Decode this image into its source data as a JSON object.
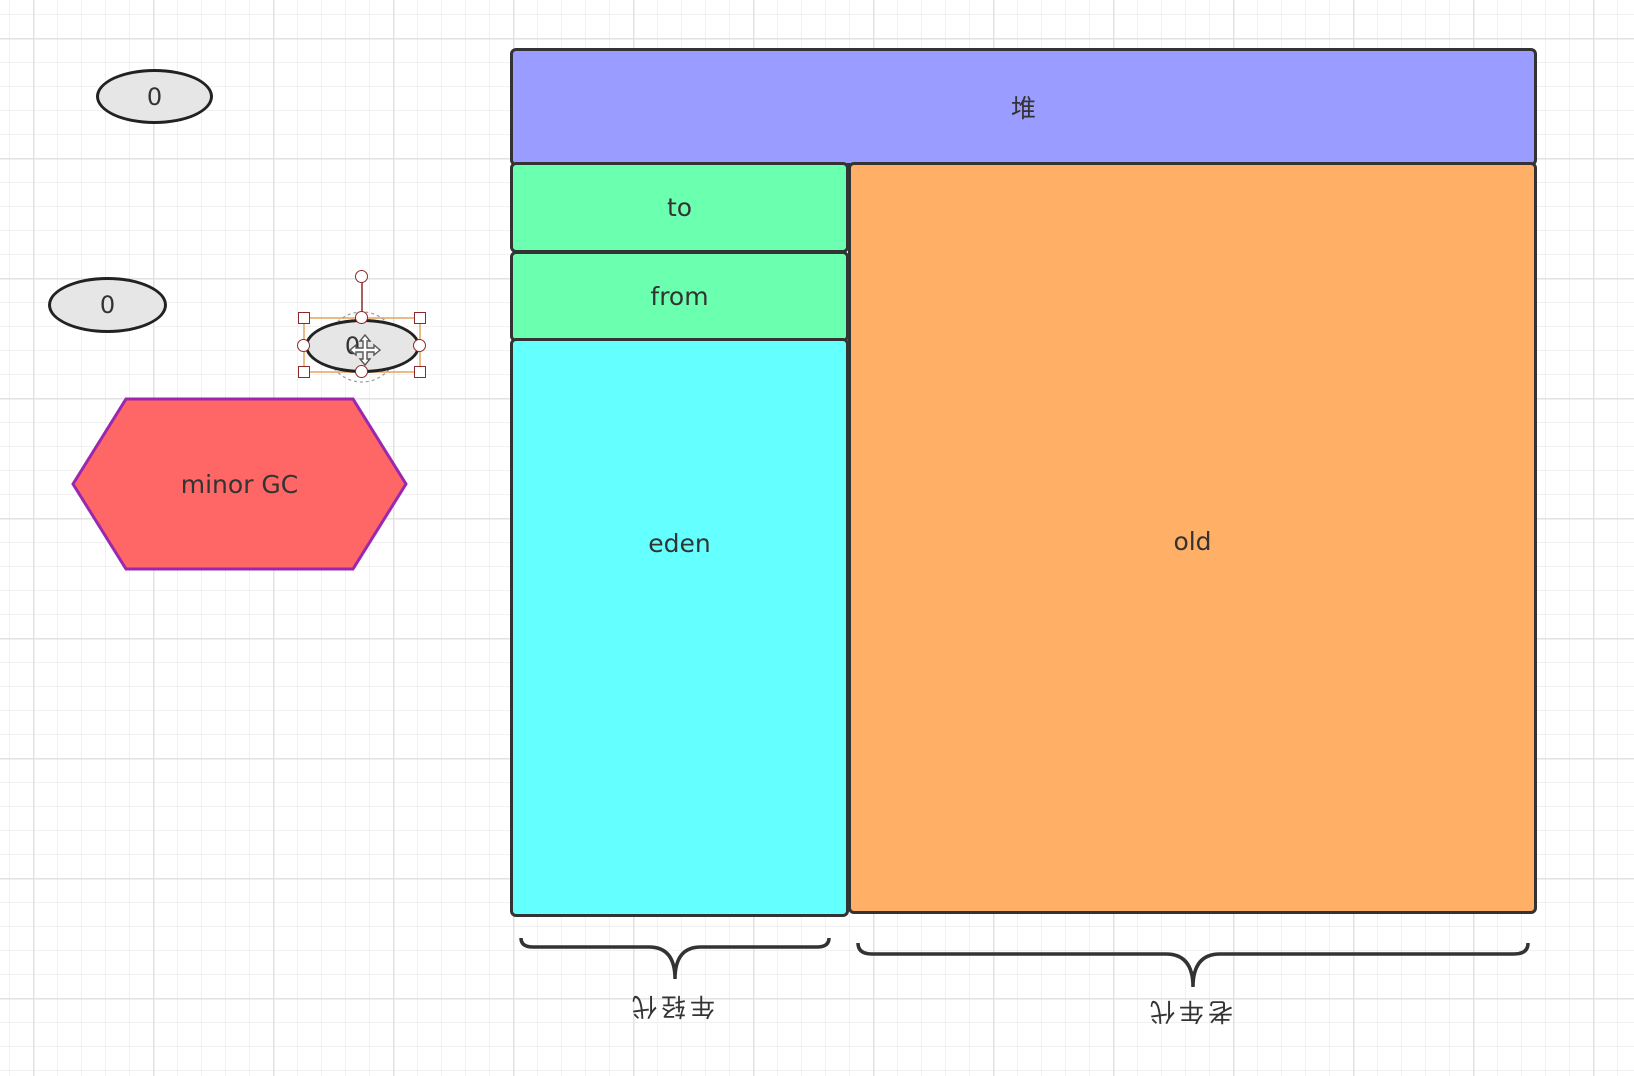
{
  "diagram": {
    "heap": {
      "label": "堆",
      "color": "#9a9cff"
    },
    "to": {
      "label": "to",
      "color": "#6bffb0"
    },
    "from": {
      "label": "from",
      "color": "#6bffb0"
    },
    "eden": {
      "label": "eden",
      "color": "#64ffff"
    },
    "old": {
      "label": "old",
      "color": "#ffb066"
    },
    "young_brace_label": "年轻代",
    "old_brace_label": "老年代",
    "counter_top": "0",
    "counter_middle": "0",
    "counter_selected": "0",
    "minor_gc": {
      "label": "minor GC",
      "color": "#ff6666",
      "border_color": "#9b27af"
    }
  }
}
